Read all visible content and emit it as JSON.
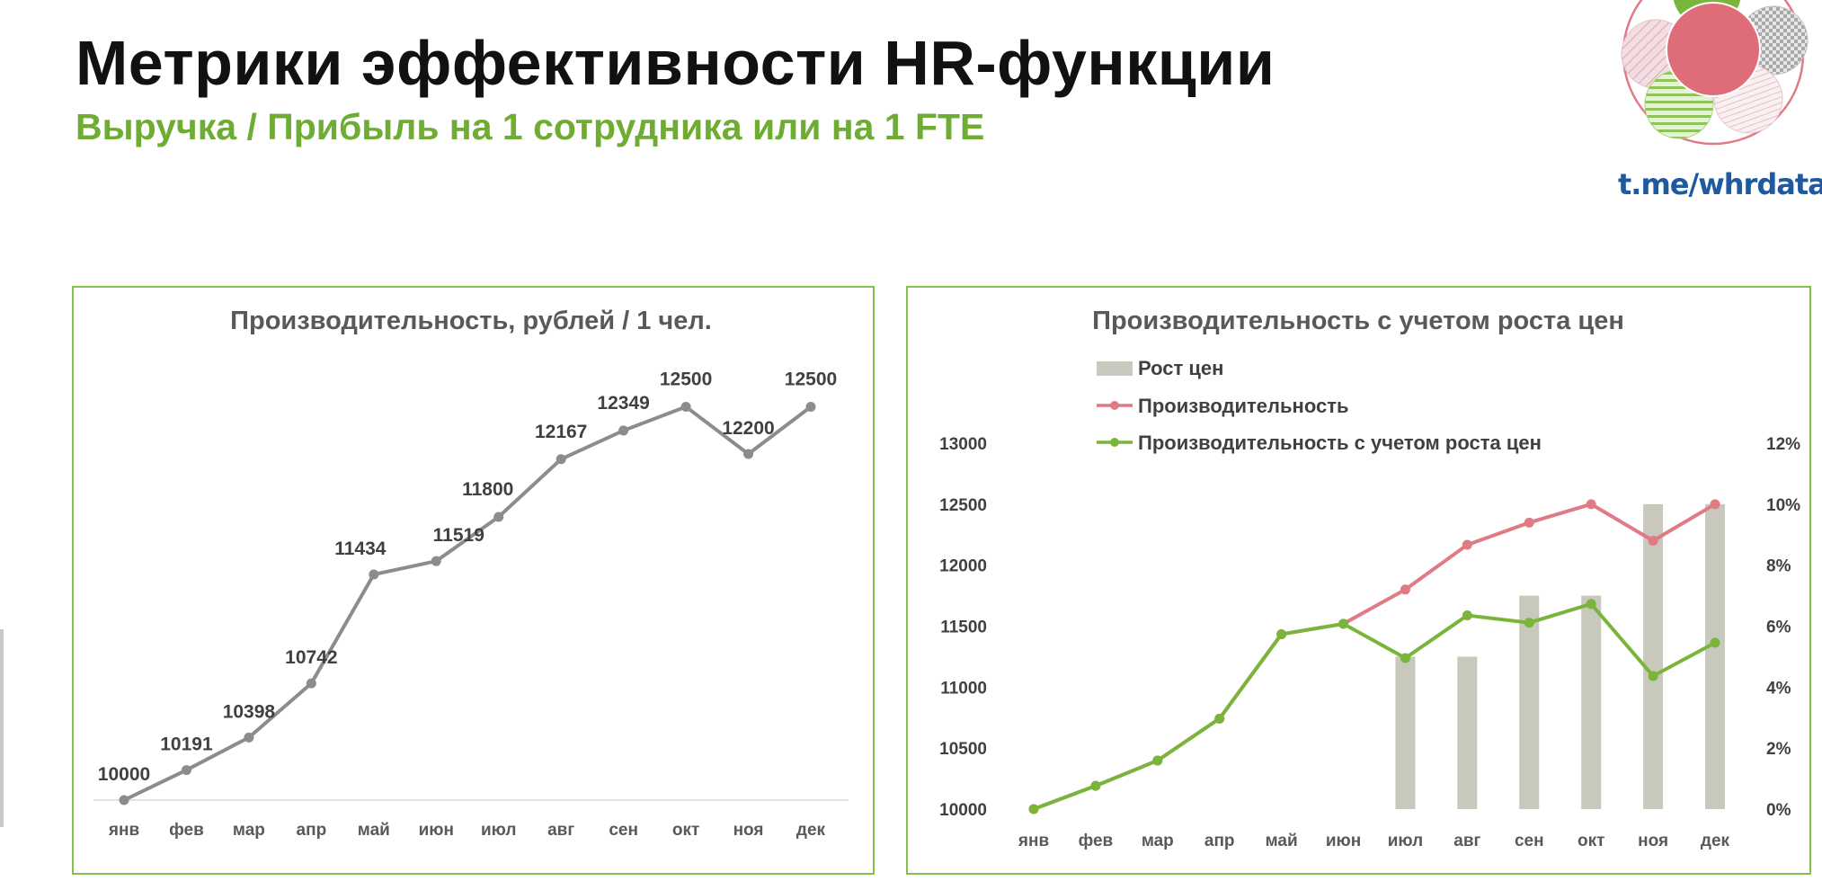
{
  "header": {
    "title": "Метрики эффективности HR-функции",
    "subtitle": "Выручка / Прибыль на 1 сотрудника или на 1 FTE"
  },
  "logo": {
    "link_text": "t.me/whrdata"
  },
  "colors": {
    "accent_green": "#6fac34",
    "panel_border": "#7fc34a",
    "gray_line": "#8c8c8c",
    "pink_line": "#e07a85",
    "green_line": "#7ab53b",
    "bar_fill": "#c9c8bd",
    "link_blue": "#1e5aa0"
  },
  "chart_data": [
    {
      "type": "line",
      "title": "Производительность, рублей / 1 чел.",
      "categories": [
        "янв",
        "фев",
        "мар",
        "апр",
        "май",
        "июн",
        "июл",
        "авг",
        "сен",
        "окт",
        "ноя",
        "дек"
      ],
      "series": [
        {
          "values": [
            10000,
            10191,
            10398,
            10742,
            11434,
            11519,
            11800,
            12167,
            12349,
            12500,
            12200,
            12500
          ],
          "labels": [
            "10000",
            "10191",
            "10398",
            "10742",
            "11434",
            "11519",
            "11800",
            "12167",
            "12349",
            "12500",
            "12200",
            "12500"
          ]
        }
      ],
      "ylim": [
        10000,
        12600
      ],
      "grid": false,
      "data_labels": true
    },
    {
      "type": "bar",
      "title": "Производительность с учетом роста цен",
      "categories": [
        "янв",
        "фев",
        "мар",
        "апр",
        "май",
        "июн",
        "июл",
        "авг",
        "сен",
        "окт",
        "ноя",
        "дек"
      ],
      "ylim": [
        10000,
        13000
      ],
      "y_ticks": [
        "10000",
        "10500",
        "11000",
        "11500",
        "12000",
        "12500",
        "13000"
      ],
      "y2lim": [
        0,
        12
      ],
      "y2_ticks": [
        "0%",
        "2%",
        "4%",
        "6%",
        "8%",
        "10%",
        "12%"
      ],
      "legend": [
        "Рост цен",
        "Производительность",
        "Производительность с учетом роста цен"
      ],
      "legend_position": "top",
      "series": [
        {
          "name": "Рост цен",
          "kind": "bar",
          "axis": "right",
          "values": [
            0,
            0,
            0,
            0,
            0,
            0,
            5,
            5,
            7,
            7,
            10,
            10
          ]
        },
        {
          "name": "Производительность",
          "kind": "line",
          "axis": "left",
          "values": [
            10000,
            10191,
            10398,
            10742,
            11434,
            11519,
            11800,
            12167,
            12349,
            12500,
            12200,
            12500
          ]
        },
        {
          "name": "Производительность с учетом роста цен",
          "kind": "line",
          "axis": "left",
          "values": [
            10000,
            10191,
            10398,
            10742,
            11434,
            11519,
            11238,
            11588,
            11528,
            11682,
            11091,
            11364
          ]
        }
      ],
      "grid": false
    }
  ]
}
